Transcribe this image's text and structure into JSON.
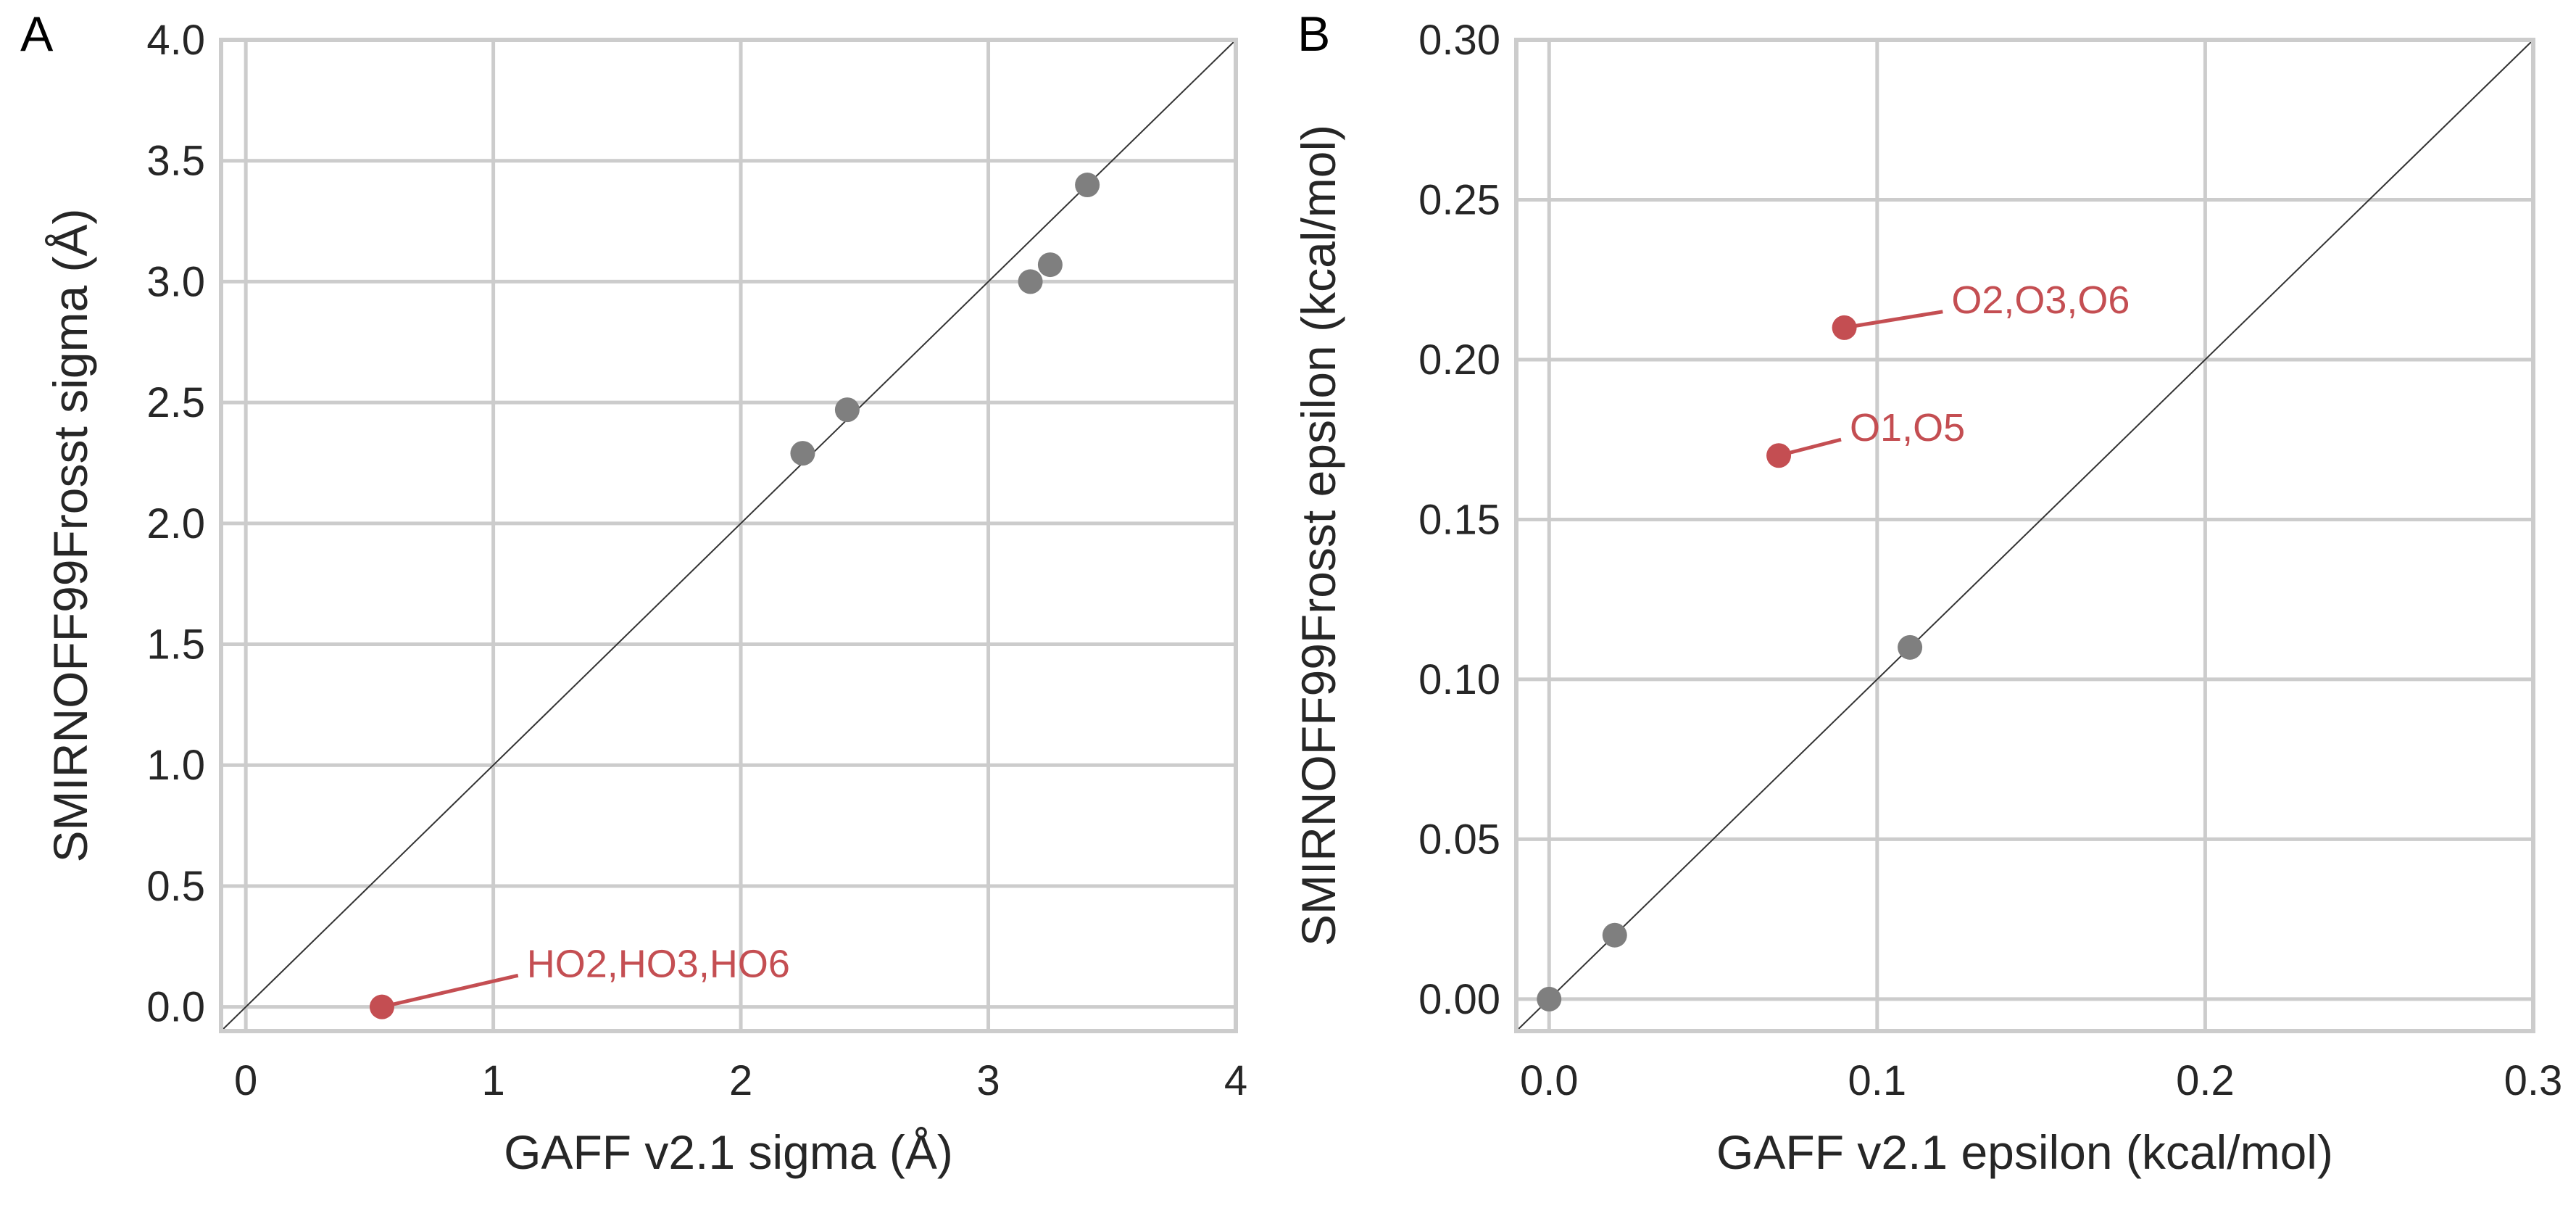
{
  "chart_data": [
    {
      "panel_label": "A",
      "type": "scatter",
      "xlabel": "GAFF v2.1 sigma (Å)",
      "ylabel": "SMIRNOFF99Frosst sigma (Å)",
      "xlim": [
        -0.1,
        4.0
      ],
      "ylim": [
        -0.1,
        4.0
      ],
      "x_ticks": [
        0,
        1,
        2,
        3,
        4
      ],
      "x_tick_labels": [
        "0",
        "1",
        "2",
        "3",
        "4"
      ],
      "y_ticks": [
        0.0,
        0.5,
        1.0,
        1.5,
        2.0,
        2.5,
        3.0,
        3.5,
        4.0
      ],
      "y_tick_labels": [
        "0.0",
        "0.5",
        "1.0",
        "1.5",
        "2.0",
        "2.5",
        "3.0",
        "3.5",
        "4.0"
      ],
      "grid": true,
      "diagonal": true,
      "points": [
        {
          "x": 0.55,
          "y": 0.0,
          "highlight": true
        },
        {
          "x": 2.25,
          "y": 2.29,
          "highlight": false
        },
        {
          "x": 2.43,
          "y": 2.47,
          "highlight": false
        },
        {
          "x": 3.17,
          "y": 3.0,
          "highlight": false
        },
        {
          "x": 3.25,
          "y": 3.07,
          "highlight": false
        },
        {
          "x": 3.4,
          "y": 3.4,
          "highlight": false
        }
      ],
      "annotations": [
        {
          "text": "HO2,HO3,HO6",
          "point_x": 0.55,
          "point_y": 0.0,
          "text_x": 1.1,
          "text_y": 0.13
        }
      ]
    },
    {
      "panel_label": "B",
      "type": "scatter",
      "xlabel": "GAFF v2.1 epsilon (kcal/mol)",
      "ylabel": "SMIRNOFF99Frosst epsilon (kcal/mol)",
      "xlim": [
        -0.01,
        0.3
      ],
      "ylim": [
        -0.01,
        0.3
      ],
      "x_ticks": [
        0.0,
        0.1,
        0.2,
        0.3
      ],
      "x_tick_labels": [
        "0.0",
        "0.1",
        "0.2",
        "0.3"
      ],
      "y_ticks": [
        0.0,
        0.05,
        0.1,
        0.15,
        0.2,
        0.25,
        0.3
      ],
      "y_tick_labels": [
        "0.00",
        "0.05",
        "0.10",
        "0.15",
        "0.20",
        "0.25",
        "0.30"
      ],
      "grid": true,
      "diagonal": true,
      "points": [
        {
          "x": 0.0,
          "y": 0.0,
          "highlight": false
        },
        {
          "x": 0.02,
          "y": 0.02,
          "highlight": false
        },
        {
          "x": 0.11,
          "y": 0.11,
          "highlight": false
        },
        {
          "x": 0.07,
          "y": 0.17,
          "highlight": true
        },
        {
          "x": 0.09,
          "y": 0.21,
          "highlight": true
        }
      ],
      "annotations": [
        {
          "text": "O2,O3,O6",
          "point_x": 0.09,
          "point_y": 0.21,
          "text_x": 0.12,
          "text_y": 0.215
        },
        {
          "text": "O1,O5",
          "point_x": 0.07,
          "point_y": 0.17,
          "text_x": 0.089,
          "text_y": 0.175
        }
      ]
    }
  ],
  "colors": {
    "point": "#7f7f7f",
    "highlight": "#c44e52",
    "grid": "#cccccc",
    "spine": "#cccccc",
    "diagonal": "#333333",
    "text": "#262626"
  }
}
